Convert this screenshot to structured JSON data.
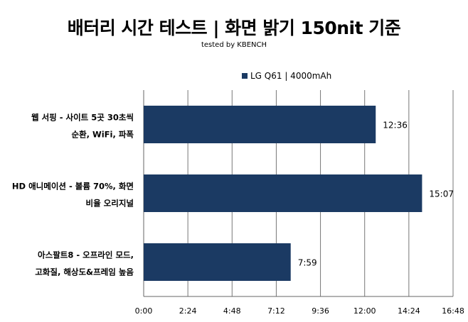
{
  "chart_data": {
    "type": "bar",
    "orientation": "horizontal",
    "title": "배터리 시간 테스트 | 화면 밝기 150nit 기준",
    "subtitle": "tested by KBENCH",
    "legend": {
      "label": "LG Q61 | 4000mAh",
      "placement": "top"
    },
    "categories": [
      [
        "웹 서핑 - 사이트 5곳 30초씩",
        "순환, WiFi, 파폭"
      ],
      [
        "HD 애니메이션 - 볼륨 70%, 화면",
        "비율 오리지널"
      ],
      [
        "아스팔트8 - 오프라인 모드,",
        "고화질, 해상도&프레임 높음"
      ]
    ],
    "series": [
      {
        "name": "LG Q61 | 4000mAh",
        "color": "#1b3a63",
        "values_minutes": [
          756,
          907,
          479
        ],
        "labels": [
          "12:36",
          "15:07",
          "7:59"
        ]
      }
    ],
    "xlim_minutes": [
      0,
      1008
    ],
    "xticks": [
      "0:00",
      "2:24",
      "4:48",
      "7:12",
      "9:36",
      "12:00",
      "14:24",
      "16:48"
    ],
    "grid": true
  }
}
